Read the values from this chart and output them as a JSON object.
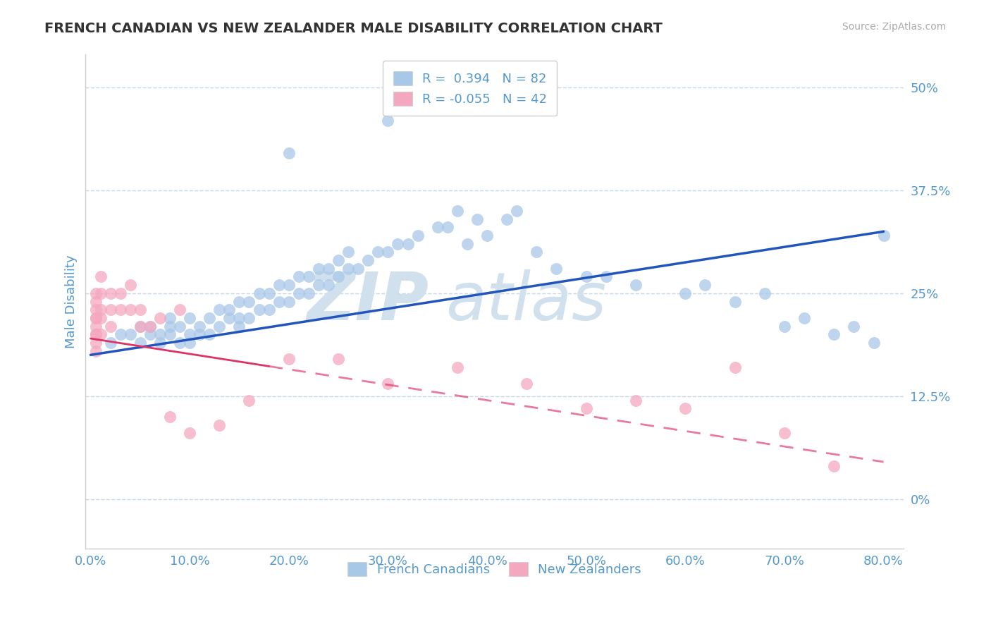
{
  "title": "FRENCH CANADIAN VS NEW ZEALANDER MALE DISABILITY CORRELATION CHART",
  "source": "Source: ZipAtlas.com",
  "ylabel": "Male Disability",
  "xlim": [
    -0.005,
    0.82
  ],
  "ylim": [
    -0.06,
    0.54
  ],
  "yticks": [
    0.0,
    0.125,
    0.25,
    0.375,
    0.5
  ],
  "ytick_labels": [
    "0%",
    "12.5%",
    "25%",
    "37.5%",
    "50%"
  ],
  "xticks": [
    0.0,
    0.1,
    0.2,
    0.3,
    0.4,
    0.5,
    0.6,
    0.7,
    0.8
  ],
  "xtick_labels": [
    "0.0%",
    "10.0%",
    "20.0%",
    "30.0%",
    "40.0%",
    "50.0%",
    "60.0%",
    "70.0%",
    "80.0%"
  ],
  "legend_blue_r": "R =  0.394",
  "legend_blue_n": "N = 82",
  "legend_pink_r": "R = -0.055",
  "legend_pink_n": "N = 42",
  "blue_color": "#a8c8e8",
  "pink_color": "#f4a8c0",
  "trend_blue_color": "#2255bb",
  "trend_pink_solid_color": "#dd3366",
  "trend_pink_dash_color": "#ee88aa",
  "grid_color": "#c8d8e8",
  "background_color": "#ffffff",
  "title_color": "#333333",
  "axis_color": "#5599cc",
  "watermark_color": "#d0e0ec",
  "french_canadian_x": [
    0.02,
    0.03,
    0.04,
    0.05,
    0.05,
    0.06,
    0.06,
    0.07,
    0.07,
    0.08,
    0.08,
    0.08,
    0.09,
    0.09,
    0.1,
    0.1,
    0.1,
    0.11,
    0.11,
    0.12,
    0.12,
    0.13,
    0.13,
    0.14,
    0.14,
    0.15,
    0.15,
    0.15,
    0.16,
    0.16,
    0.17,
    0.17,
    0.18,
    0.18,
    0.19,
    0.19,
    0.2,
    0.2,
    0.21,
    0.21,
    0.22,
    0.22,
    0.23,
    0.23,
    0.24,
    0.24,
    0.25,
    0.25,
    0.26,
    0.26,
    0.27,
    0.28,
    0.29,
    0.3,
    0.31,
    0.32,
    0.33,
    0.35,
    0.36,
    0.37,
    0.38,
    0.39,
    0.4,
    0.42,
    0.43,
    0.45,
    0.47,
    0.5,
    0.52,
    0.55,
    0.6,
    0.62,
    0.65,
    0.68,
    0.7,
    0.72,
    0.75,
    0.77,
    0.79,
    0.8,
    0.2,
    0.3
  ],
  "french_canadian_y": [
    0.19,
    0.2,
    0.2,
    0.19,
    0.21,
    0.2,
    0.21,
    0.19,
    0.2,
    0.2,
    0.21,
    0.22,
    0.19,
    0.21,
    0.19,
    0.2,
    0.22,
    0.2,
    0.21,
    0.2,
    0.22,
    0.21,
    0.23,
    0.22,
    0.23,
    0.21,
    0.22,
    0.24,
    0.22,
    0.24,
    0.23,
    0.25,
    0.23,
    0.25,
    0.24,
    0.26,
    0.24,
    0.26,
    0.25,
    0.27,
    0.25,
    0.27,
    0.26,
    0.28,
    0.26,
    0.28,
    0.27,
    0.29,
    0.28,
    0.3,
    0.28,
    0.29,
    0.3,
    0.3,
    0.31,
    0.31,
    0.32,
    0.33,
    0.33,
    0.35,
    0.31,
    0.34,
    0.32,
    0.34,
    0.35,
    0.3,
    0.28,
    0.27,
    0.27,
    0.26,
    0.25,
    0.26,
    0.24,
    0.25,
    0.21,
    0.22,
    0.2,
    0.21,
    0.19,
    0.32,
    0.42,
    0.46
  ],
  "new_zealander_x": [
    0.005,
    0.005,
    0.005,
    0.005,
    0.005,
    0.005,
    0.005,
    0.005,
    0.005,
    0.005,
    0.01,
    0.01,
    0.01,
    0.01,
    0.01,
    0.02,
    0.02,
    0.02,
    0.03,
    0.03,
    0.04,
    0.04,
    0.05,
    0.05,
    0.06,
    0.07,
    0.08,
    0.09,
    0.1,
    0.13,
    0.16,
    0.2,
    0.25,
    0.3,
    0.37,
    0.44,
    0.5,
    0.55,
    0.6,
    0.65,
    0.7,
    0.75
  ],
  "new_zealander_y": [
    0.19,
    0.2,
    0.21,
    0.22,
    0.23,
    0.24,
    0.25,
    0.22,
    0.2,
    0.18,
    0.2,
    0.22,
    0.23,
    0.25,
    0.27,
    0.21,
    0.23,
    0.25,
    0.23,
    0.25,
    0.23,
    0.26,
    0.21,
    0.23,
    0.21,
    0.22,
    0.1,
    0.23,
    0.08,
    0.09,
    0.12,
    0.17,
    0.17,
    0.14,
    0.16,
    0.14,
    0.11,
    0.12,
    0.11,
    0.16,
    0.08,
    0.04
  ],
  "trend_blue_start_x": 0.0,
  "trend_blue_end_x": 0.8,
  "trend_blue_start_y": 0.175,
  "trend_blue_end_y": 0.325,
  "trend_pink_start_x": 0.0,
  "trend_pink_solid_end_x": 0.18,
  "trend_pink_dash_start_x": 0.18,
  "trend_pink_end_x": 0.8,
  "trend_pink_start_y": 0.195,
  "trend_pink_end_y": 0.045
}
